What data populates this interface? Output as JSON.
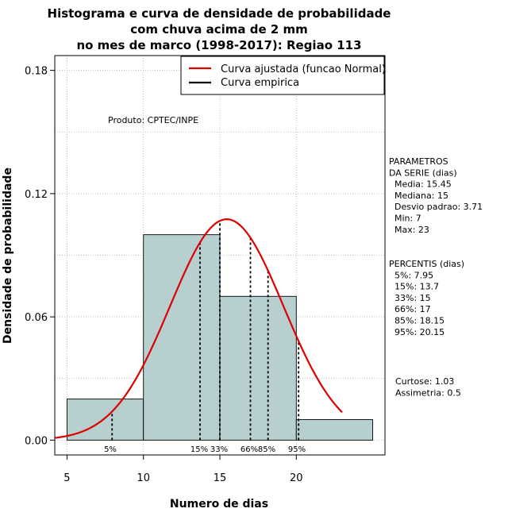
{
  "chart_data": {
    "type": "bar",
    "title_lines": [
      "Histograma e curva de densidade de probabilidade",
      "com chuva acima de 2 mm",
      "no mes de marco (1998-2017): Regiao 113"
    ],
    "xlabel": "Numero de dias",
    "ylabel": "Densidade de probabilidade",
    "xlim": [
      4.2,
      25.8
    ],
    "ylim": [
      -0.0072,
      0.1872
    ],
    "x_ticks": [
      5,
      10,
      15,
      20
    ],
    "y_ticks": [
      0.0,
      0.06,
      0.12,
      0.18
    ],
    "y_tick_labels": [
      "0.00",
      "0.06",
      "0.12",
      "0.18"
    ],
    "grid": true,
    "bars": [
      {
        "x0": 5,
        "x1": 10,
        "density": 0.02
      },
      {
        "x0": 10,
        "x1": 15,
        "density": 0.1
      },
      {
        "x0": 15,
        "x1": 20,
        "density": 0.07
      },
      {
        "x0": 20,
        "x1": 25,
        "density": 0.01
      }
    ],
    "bar_color": "#b8cfcf",
    "curve": {
      "name": "Curva ajustada (funcao Normal)",
      "mean": 15.45,
      "sd": 3.71,
      "x_from": 4.2,
      "x_to": 23,
      "color": "#dd0000"
    },
    "empirical": {
      "name": "Curva empirica",
      "color": "#000000"
    },
    "legend": {
      "position": "top-right",
      "entries": [
        "Curva ajustada (funcao Normal)",
        "Curva empirica"
      ]
    },
    "percentiles": [
      {
        "label": "5%",
        "value": 7.95
      },
      {
        "label": "15%",
        "value": 13.7
      },
      {
        "label": "33%",
        "value": 15
      },
      {
        "label": "66%",
        "value": 17
      },
      {
        "label": "85%",
        "value": 18.15
      },
      {
        "label": "95%",
        "value": 20.15
      }
    ],
    "annotation": "Produto: CPTEC/INPE",
    "params_lines": [
      "PARAMETROS",
      "DA SERIE (dias)",
      "  Media: 15.45",
      "  Mediana: 15",
      "  Desvio padrao: 3.71",
      "  Min: 7",
      "  Max: 23"
    ],
    "percentis_lines": [
      "PERCENTIS (dias)",
      "  5%: 7.95",
      "  15%: 13.7",
      "  33%: 15",
      "  66%: 17",
      "  85%: 18.15",
      "  95%: 20.15"
    ],
    "stats_lines": [
      "Curtose: 1.03",
      "Assimetria: 0.5"
    ]
  }
}
